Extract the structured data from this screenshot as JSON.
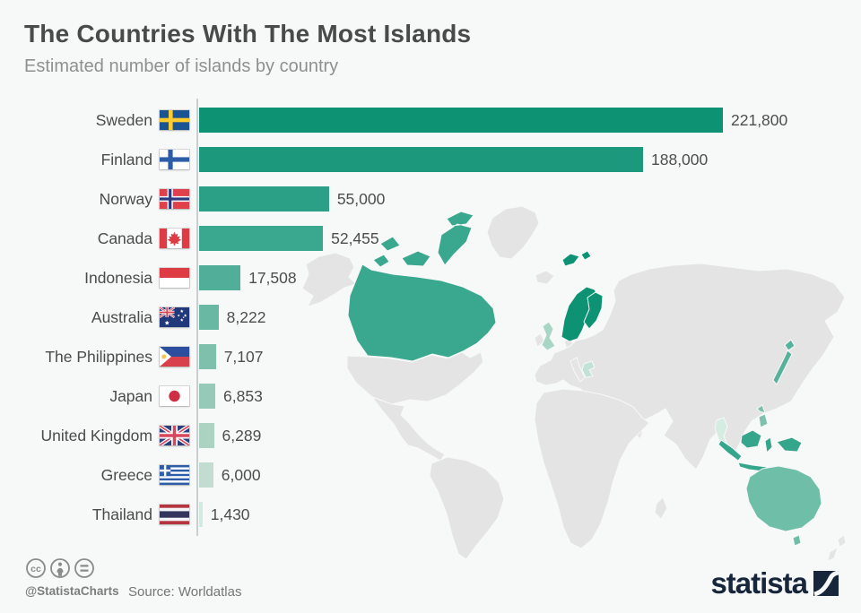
{
  "header": {
    "title": "The Countries With The Most Islands",
    "subtitle": "Estimated number of islands by country"
  },
  "chart_data": {
    "type": "bar",
    "orientation": "horizontal",
    "title": "The Countries With The Most Islands",
    "subtitle": "Estimated number of islands by country",
    "categories": [
      "Sweden",
      "Finland",
      "Norway",
      "Canada",
      "Indonesia",
      "Australia",
      "The Philippines",
      "Japan",
      "United Kingdom",
      "Greece",
      "Thailand"
    ],
    "values": [
      221800,
      188000,
      55000,
      52455,
      17508,
      8222,
      7107,
      6853,
      6289,
      6000,
      1430
    ],
    "value_labels": [
      "221,800",
      "188,000",
      "55,000",
      "52,455",
      "17,508",
      "8,222",
      "7,107",
      "6,853",
      "6,289",
      "6,000",
      "1,430"
    ],
    "max_value": 221800,
    "xlim": [
      0,
      221800
    ],
    "grid": "off",
    "legend": "none",
    "bar_colors": [
      "#0d9374",
      "#1c997d",
      "#2ba087",
      "#3aa78f",
      "#51af99",
      "#68b8a3",
      "#7fc0ad",
      "#96c9b8",
      "#acd2c2",
      "#c0ddd0",
      "#d2eae0"
    ],
    "flag_icons": [
      "sweden-flag",
      "finland-flag",
      "norway-flag",
      "canada-flag",
      "indonesia-flag",
      "australia-flag",
      "philippines-flag",
      "japan-flag",
      "united-kingdom-flag",
      "greece-flag",
      "thailand-flag"
    ],
    "background_map": {
      "land_color": "#e4e4e4",
      "sea_color": "#f7f8f8",
      "highlighted_countries": [
        "Canada",
        "Norway",
        "Sweden",
        "Finland",
        "United Kingdom",
        "Greece",
        "Japan",
        "Thailand",
        "The Philippines",
        "Indonesia",
        "Australia"
      ]
    }
  },
  "footer": {
    "credit_handle": "@StatistaCharts",
    "source": "Source: Worldatlas",
    "license_icons": [
      "cc-icon",
      "attribution-icon",
      "equal-icon"
    ],
    "brand": "statista"
  },
  "colors": {
    "background": "#f7f8f8",
    "title": "#4a4a4a",
    "subtitle": "#8f8f8f",
    "axis": "#c9ced1",
    "value_text": "#4d4d4d",
    "brand_navy": "#18263c"
  }
}
